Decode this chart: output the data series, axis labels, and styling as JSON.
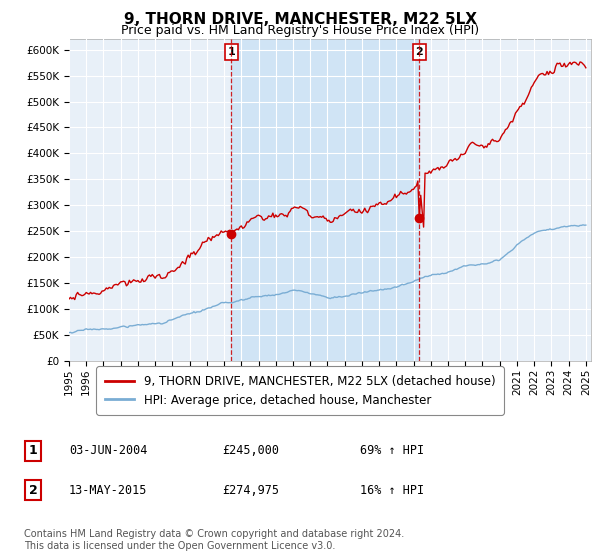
{
  "title": "9, THORN DRIVE, MANCHESTER, M22 5LX",
  "subtitle": "Price paid vs. HM Land Registry's House Price Index (HPI)",
  "hpi_label": "HPI: Average price, detached house, Manchester",
  "property_label": "9, THORN DRIVE, MANCHESTER, M22 5LX (detached house)",
  "sale1_date": "03-JUN-2004",
  "sale1_price": 245000,
  "sale1_hpi": "69% ↑ HPI",
  "sale2_date": "13-MAY-2015",
  "sale2_price": 274975,
  "sale2_hpi": "16% ↑ HPI",
  "footnote": "Contains HM Land Registry data © Crown copyright and database right 2024.\nThis data is licensed under the Open Government Licence v3.0.",
  "ylim": [
    0,
    620000
  ],
  "yticks": [
    0,
    50000,
    100000,
    150000,
    200000,
    250000,
    300000,
    350000,
    400000,
    450000,
    500000,
    550000,
    600000
  ],
  "plot_color_red": "#cc0000",
  "plot_color_blue": "#7aadd4",
  "sale_vline_color": "#cc0000",
  "shade_color": "#d0e4f5",
  "background_color": "#e8f0f8",
  "plot_bg_color": "#e8f0f8",
  "title_fontsize": 11,
  "subtitle_fontsize": 9,
  "tick_fontsize": 7.5,
  "legend_fontsize": 8.5,
  "annotation_fontsize": 8.5,
  "footnote_fontsize": 7
}
